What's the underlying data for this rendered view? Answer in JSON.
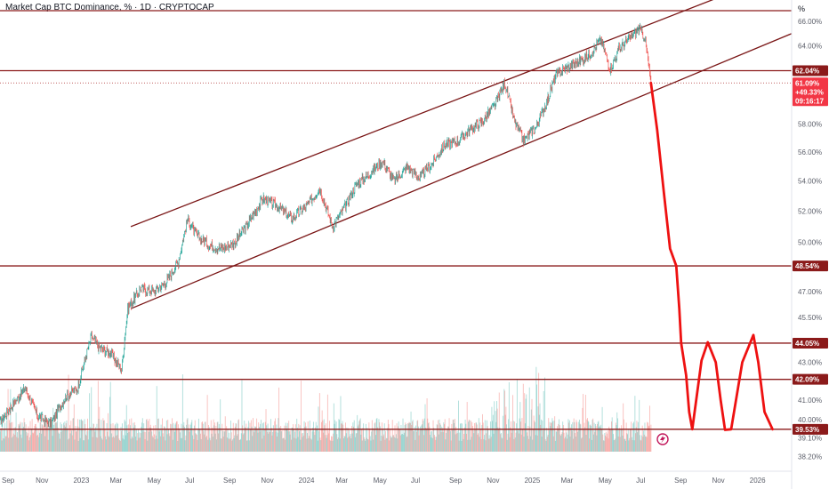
{
  "chart_data": {
    "type": "line",
    "title": "Market Cap BTC Dominance, % · 1D · CRYPTOCAP",
    "y_unit": "%",
    "y_scale": "log",
    "ylim": [
      37.5,
      67.5
    ],
    "y_ticks": [
      "66.00%",
      "64.00%",
      "62.04%",
      "61.09%",
      "58.00%",
      "56.00%",
      "54.00%",
      "52.00%",
      "50.00%",
      "48.54%",
      "47.00%",
      "45.50%",
      "44.05%",
      "43.00%",
      "42.09%",
      "41.00%",
      "40.00%",
      "39.53%",
      "39.10%",
      "38.20%"
    ],
    "x_ticks": [
      "Sep",
      "Nov",
      "2023",
      "Mar",
      "May",
      "Jul",
      "Sep",
      "Nov",
      "2024",
      "Mar",
      "May",
      "Jul",
      "Sep",
      "Nov",
      "2025",
      "Mar",
      "May",
      "Jul",
      "Sep",
      "Nov",
      "2026"
    ],
    "x_range": [
      "2022-08-25",
      "2026-02-28"
    ],
    "current_price": {
      "value": "61.09%",
      "change": "+49.33%",
      "countdown": "09:16:17",
      "color": "#f23645"
    },
    "horizontal_levels": [
      {
        "value": 66.9,
        "label": ""
      },
      {
        "value": 62.04,
        "label": "62.04%"
      },
      {
        "value": 48.54,
        "label": "48.54%"
      },
      {
        "value": 44.05,
        "label": "44.05%"
      },
      {
        "value": 42.09,
        "label": "42.09%"
      },
      {
        "value": 39.53,
        "label": "39.53%"
      }
    ],
    "channel": {
      "upper": {
        "start": [
          "2023-03-25",
          51.0
        ],
        "end": [
          "2025-11-15",
          68.3
        ]
      },
      "lower": {
        "start": [
          "2023-03-25",
          46.0
        ],
        "end": [
          "2026-02-28",
          65.0
        ]
      }
    },
    "series": [
      {
        "type": "price",
        "x": [
          "2022-08-25",
          "2022-09-15",
          "2022-10-05",
          "2022-10-25",
          "2022-11-15",
          "2022-12-10",
          "2022-12-28",
          "2023-01-20",
          "2023-02-01",
          "2023-02-20",
          "2023-03-10",
          "2023-03-20",
          "2023-04-10",
          "2023-05-01",
          "2023-05-20",
          "2023-06-10",
          "2023-06-25",
          "2023-07-10",
          "2023-08-01",
          "2023-08-20",
          "2023-09-10",
          "2023-10-01",
          "2023-10-25",
          "2023-11-20",
          "2023-12-10",
          "2024-01-05",
          "2024-01-25",
          "2024-02-15",
          "2024-03-05",
          "2024-03-25",
          "2024-04-15",
          "2024-05-05",
          "2024-05-25",
          "2024-06-15",
          "2024-07-05",
          "2024-07-25",
          "2024-08-15",
          "2024-09-05",
          "2024-09-25",
          "2024-10-15",
          "2024-11-05",
          "2024-11-20",
          "2024-12-05",
          "2024-12-20",
          "2025-01-10",
          "2025-01-30",
          "2025-02-10",
          "2025-02-25",
          "2025-03-15",
          "2025-04-05",
          "2025-04-25",
          "2025-05-10",
          "2025-05-25",
          "2025-06-10",
          "2025-06-25",
          "2025-07-05",
          "2025-07-15"
        ],
        "values": [
          39.9,
          40.8,
          41.6,
          40.2,
          39.8,
          41.2,
          41.6,
          44.4,
          43.8,
          43.5,
          42.6,
          46.0,
          47.2,
          47.0,
          47.5,
          48.8,
          51.5,
          50.4,
          49.8,
          49.6,
          50.0,
          51.2,
          52.8,
          52.3,
          51.5,
          52.4,
          53.5,
          51.0,
          52.2,
          53.8,
          54.5,
          55.4,
          54.0,
          55.0,
          54.2,
          55.2,
          56.5,
          56.8,
          57.6,
          58.2,
          59.5,
          61.1,
          58.3,
          56.8,
          57.8,
          60.0,
          61.6,
          62.2,
          62.6,
          63.2,
          64.5,
          62.2,
          63.8,
          64.6,
          65.4,
          64.7,
          61.09
        ]
      },
      {
        "type": "projection",
        "x": [
          "2025-07-15",
          "2025-07-25",
          "2025-08-05",
          "2025-08-15",
          "2025-08-25",
          "2025-08-30",
          "2025-09-02",
          "2025-09-10",
          "2025-09-15",
          "2025-09-20",
          "2025-10-05",
          "2025-10-15",
          "2025-10-28",
          "2025-11-05",
          "2025-11-12",
          "2025-11-22",
          "2025-12-10",
          "2025-12-28",
          "2026-01-05",
          "2026-01-15",
          "2026-01-28"
        ],
        "values": [
          61.09,
          57.6,
          53.2,
          49.6,
          48.54,
          46.0,
          44.05,
          42.3,
          40.4,
          39.53,
          43.1,
          44.1,
          43.0,
          41.0,
          39.5,
          39.53,
          43.0,
          44.5,
          43.0,
          40.4,
          39.53
        ]
      }
    ],
    "colors": {
      "level": "#8b1a1a",
      "channel": "#7a1616",
      "projection": "#ee1111",
      "up": "#26a69a",
      "down": "#ef5350"
    }
  }
}
